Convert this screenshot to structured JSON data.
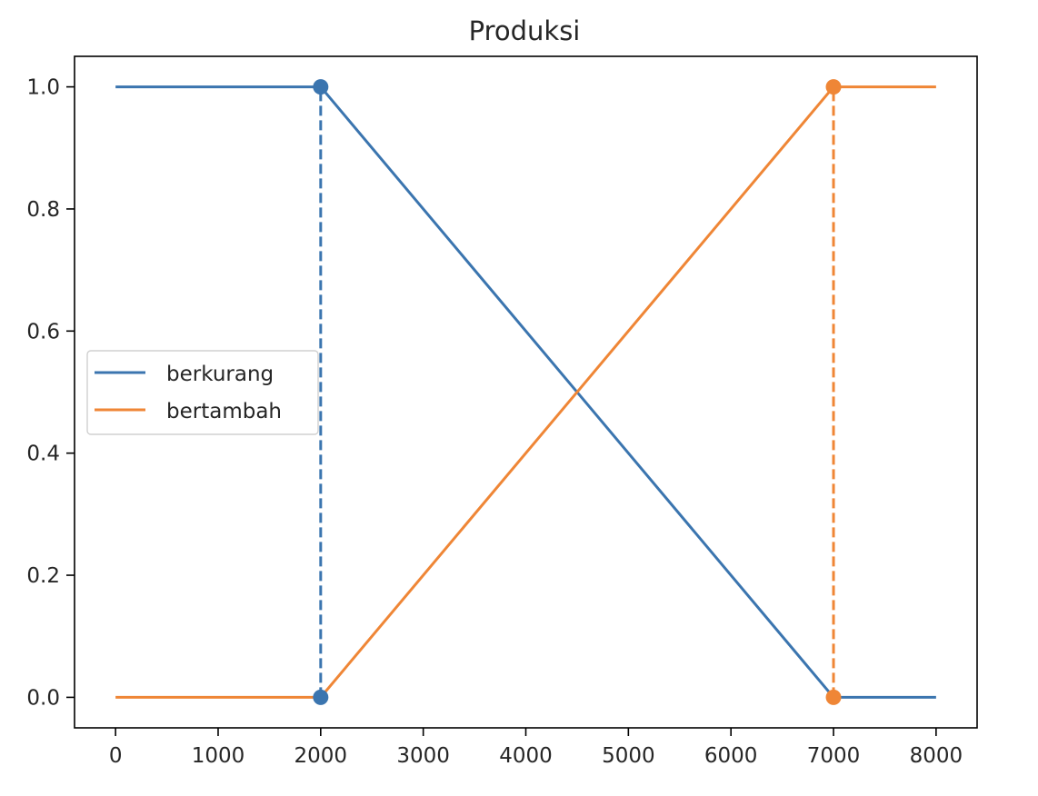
{
  "chart_data": {
    "type": "line",
    "title": "Produksi",
    "xlabel": "",
    "ylabel": "",
    "xlim": [
      -400,
      8400
    ],
    "ylim": [
      -0.05,
      1.05
    ],
    "x_ticks": [
      0,
      1000,
      2000,
      3000,
      4000,
      5000,
      6000,
      7000,
      8000
    ],
    "y_ticks": [
      0.0,
      0.2,
      0.4,
      0.6,
      0.8,
      1.0
    ],
    "x_tick_labels": [
      "0",
      "1000",
      "2000",
      "3000",
      "4000",
      "5000",
      "6000",
      "7000",
      "8000"
    ],
    "y_tick_labels": [
      "0.0",
      "0.2",
      "0.4",
      "0.6",
      "0.8",
      "1.0"
    ],
    "grid": false,
    "legend_position": "center-left",
    "series": [
      {
        "name": "berkurang",
        "color": "#3b75af",
        "x": [
          0,
          2000,
          7000,
          8000
        ],
        "y": [
          1,
          1,
          0,
          0
        ]
      },
      {
        "name": "bertambah",
        "color": "#ef8636",
        "x": [
          0,
          2000,
          7000,
          8000
        ],
        "y": [
          0,
          0,
          1,
          1
        ]
      }
    ],
    "markers": [
      {
        "series": "berkurang",
        "x": 2000,
        "y": 1,
        "color": "#3b75af"
      },
      {
        "series": "berkurang",
        "x": 2000,
        "y": 0,
        "color": "#3b75af"
      },
      {
        "series": "bertambah",
        "x": 7000,
        "y": 1,
        "color": "#ef8636"
      },
      {
        "series": "bertambah",
        "x": 7000,
        "y": 0,
        "color": "#ef8636"
      }
    ],
    "dashed_lines": [
      {
        "series": "berkurang",
        "x": 2000,
        "y": [
          0,
          1
        ],
        "color": "#3b75af"
      },
      {
        "series": "bertambah",
        "x": 7000,
        "y": [
          0,
          1
        ],
        "color": "#ef8636"
      }
    ]
  }
}
